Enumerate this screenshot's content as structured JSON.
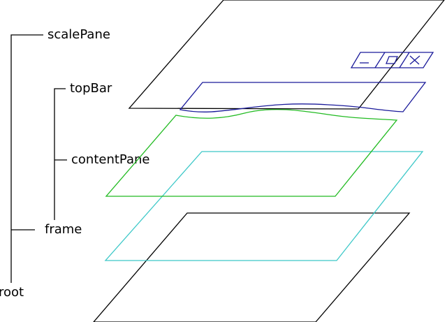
{
  "nodes": [
    {
      "label": "scalePane"
    },
    {
      "label": "topBar"
    },
    {
      "label": "contentPane"
    },
    {
      "label": "frame"
    },
    {
      "label": "root"
    }
  ]
}
